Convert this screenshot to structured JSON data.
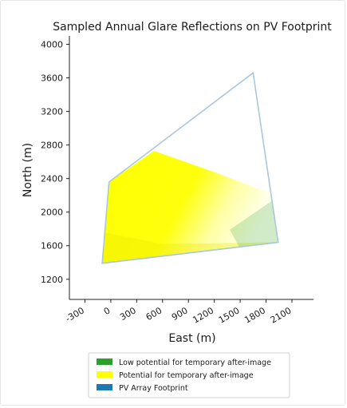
{
  "chart_data": {
    "type": "area",
    "title": "Sampled Annual Glare Reflections on PV Footprint",
    "xlabel": "East (m)",
    "ylabel": "North (m)",
    "xlim": [
      -480,
      2350
    ],
    "ylim": [
      960,
      4100
    ],
    "xticks": [
      -300,
      0,
      300,
      600,
      900,
      1200,
      1500,
      1800,
      2100
    ],
    "yticks": [
      1200,
      1600,
      2000,
      2400,
      2800,
      3200,
      3600,
      4000
    ],
    "grid": false,
    "legend_position": "bottom",
    "series": [
      {
        "name": "Low potential for temporary after-image",
        "color": "#2ca02c",
        "x": [
          1380,
          1890,
          1940,
          1500
        ],
        "y": [
          1790,
          2150,
          1640,
          1560
        ]
      },
      {
        "name": "Potential for temporary after-image",
        "color": "#ffff00",
        "x": [
          -100,
          -20,
          500,
          1250,
          1880,
          1940
        ],
        "y": [
          1390,
          2360,
          2730,
          2460,
          2210,
          1640
        ]
      },
      {
        "name": "PV Array Footprint",
        "color": "#1f77b4",
        "x": [
          -100,
          -20,
          1650,
          1940,
          -100
        ],
        "y": [
          1390,
          2360,
          3660,
          1640,
          1390
        ]
      }
    ]
  }
}
